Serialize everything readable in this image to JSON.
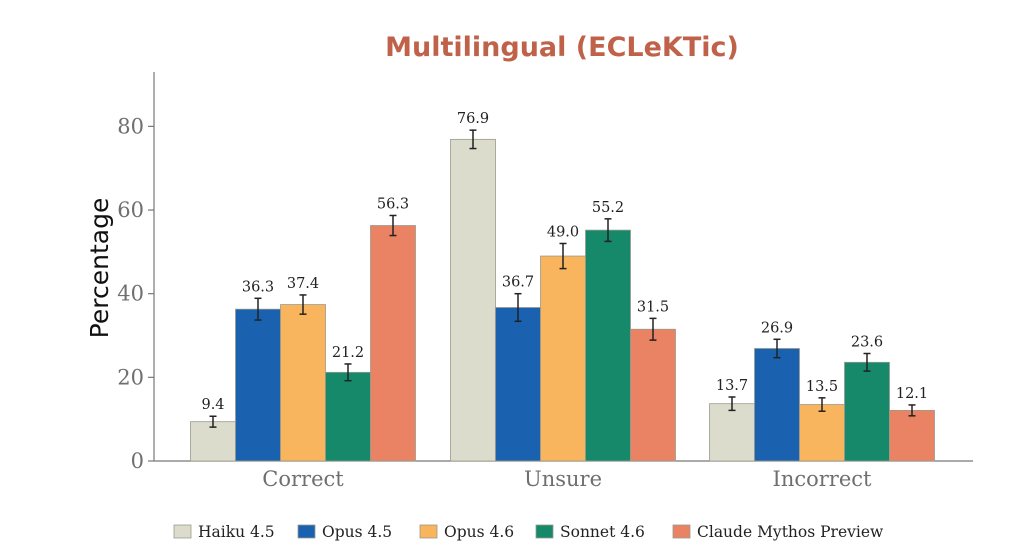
{
  "chart_data": {
    "type": "bar",
    "title": "Multilingual (ECLeKTic)",
    "xlabel": "",
    "ylabel": "Percentage",
    "ylim": [
      0,
      93
    ],
    "yticks": [
      "0",
      "20",
      "40",
      "60",
      "80"
    ],
    "categories": [
      "Correct",
      "Unsure",
      "Incorrect"
    ],
    "grid": false,
    "legend_position": "bottom",
    "series": [
      {
        "name": "Haiku 4.5",
        "color": "#dcdccc",
        "values": [
          9.4,
          76.9,
          13.7
        ],
        "labels": [
          "9.4",
          "76.9",
          "13.7"
        ],
        "error": [
          1.3,
          2.2,
          1.6
        ]
      },
      {
        "name": "Opus 4.5",
        "color": "#1a61b0",
        "values": [
          36.3,
          36.7,
          26.9
        ],
        "labels": [
          "36.3",
          "36.7",
          "26.9"
        ],
        "error": [
          2.6,
          3.3,
          2.2
        ]
      },
      {
        "name": "Opus 4.6",
        "color": "#f8b55d",
        "values": [
          37.4,
          49.0,
          13.5
        ],
        "labels": [
          "37.4",
          "49.0",
          "13.5"
        ],
        "error": [
          2.3,
          3.0,
          1.6
        ]
      },
      {
        "name": "Sonnet 4.6",
        "color": "#16896a",
        "values": [
          21.2,
          55.2,
          23.6
        ],
        "labels": [
          "21.2",
          "55.2",
          "23.6"
        ],
        "error": [
          2.0,
          2.7,
          2.1
        ]
      },
      {
        "name": "Claude Mythos Preview",
        "color": "#ea8264",
        "values": [
          56.3,
          31.5,
          12.1
        ],
        "labels": [
          "56.3",
          "31.5",
          "12.1"
        ],
        "error": [
          2.4,
          2.6,
          1.3
        ]
      }
    ]
  }
}
